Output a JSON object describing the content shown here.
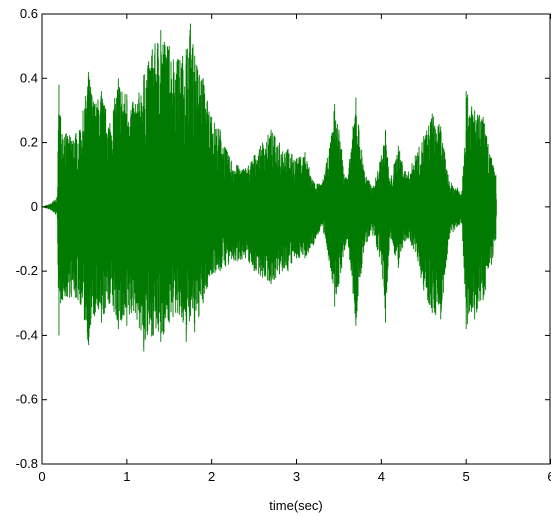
{
  "chart_data": {
    "type": "line",
    "title": "",
    "xlabel": "time(sec)",
    "ylabel": "",
    "xlim": [
      0,
      6
    ],
    "ylim": [
      -0.8,
      0.6
    ],
    "xticks": [
      0,
      1,
      2,
      3,
      4,
      5,
      6
    ],
    "xtick_labels": [
      "0",
      "1",
      "2",
      "3",
      "4",
      "5",
      "6"
    ],
    "yticks": [
      -0.8,
      -0.6,
      -0.4,
      -0.2,
      0,
      0.2,
      0.4,
      0.6
    ],
    "ytick_labels": [
      "-0.8",
      "-0.6",
      "-0.4",
      "-0.2",
      "0",
      "0.2",
      "0.4",
      "0.6"
    ],
    "grid": false,
    "series": [
      {
        "color": "#007a00",
        "envelope": {
          "t": [
            0.0,
            0.1,
            0.18,
            0.2,
            0.22,
            0.3,
            0.45,
            0.55,
            0.62,
            0.7,
            0.8,
            0.9,
            1.0,
            1.1,
            1.2,
            1.3,
            1.4,
            1.5,
            1.6,
            1.7,
            1.75,
            1.8,
            1.9,
            1.95,
            2.0,
            2.1,
            2.2,
            2.3,
            2.4,
            2.5,
            2.6,
            2.7,
            2.8,
            2.9,
            3.0,
            3.1,
            3.2,
            3.3,
            3.4,
            3.45,
            3.5,
            3.6,
            3.7,
            3.8,
            3.9,
            4.0,
            4.05,
            4.1,
            4.2,
            4.3,
            4.4,
            4.5,
            4.6,
            4.7,
            4.8,
            4.9,
            4.95,
            5.0,
            5.1,
            5.2,
            5.3,
            5.35,
            5.36
          ],
          "max": [
            0.0,
            0.01,
            0.03,
            0.38,
            0.28,
            0.22,
            0.24,
            0.42,
            0.32,
            0.36,
            0.26,
            0.4,
            0.35,
            0.32,
            0.41,
            0.49,
            0.55,
            0.5,
            0.46,
            0.49,
            0.57,
            0.47,
            0.4,
            0.33,
            0.28,
            0.24,
            0.16,
            0.13,
            0.12,
            0.16,
            0.2,
            0.24,
            0.2,
            0.18,
            0.15,
            0.17,
            0.08,
            0.07,
            0.2,
            0.32,
            0.24,
            0.08,
            0.34,
            0.11,
            0.06,
            0.16,
            0.24,
            0.08,
            0.19,
            0.1,
            0.16,
            0.22,
            0.29,
            0.25,
            0.08,
            0.06,
            0.05,
            0.36,
            0.3,
            0.28,
            0.15,
            0.1,
            0.0
          ],
          "min": [
            0.0,
            -0.01,
            -0.03,
            -0.4,
            -0.3,
            -0.28,
            -0.3,
            -0.43,
            -0.34,
            -0.36,
            -0.3,
            -0.38,
            -0.37,
            -0.33,
            -0.45,
            -0.4,
            -0.42,
            -0.36,
            -0.33,
            -0.42,
            -0.34,
            -0.39,
            -0.3,
            -0.25,
            -0.21,
            -0.2,
            -0.18,
            -0.17,
            -0.16,
            -0.2,
            -0.22,
            -0.24,
            -0.21,
            -0.2,
            -0.16,
            -0.16,
            -0.12,
            -0.06,
            -0.19,
            -0.31,
            -0.24,
            -0.1,
            -0.37,
            -0.12,
            -0.09,
            -0.18,
            -0.36,
            -0.09,
            -0.19,
            -0.1,
            -0.14,
            -0.26,
            -0.33,
            -0.35,
            -0.1,
            -0.06,
            -0.05,
            -0.38,
            -0.35,
            -0.29,
            -0.18,
            -0.1,
            0.0
          ]
        }
      }
    ]
  }
}
